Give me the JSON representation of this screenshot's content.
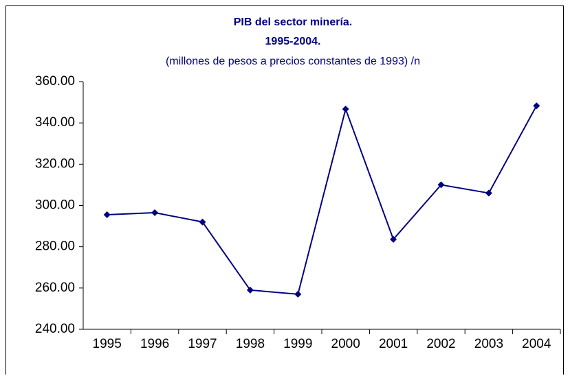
{
  "chart_data": {
    "type": "line",
    "title": "PIB del sector minería.",
    "subtitle": "1995-2004.",
    "note": "(millones de pesos a precios constantes de 1993) /n",
    "categories": [
      "1995",
      "1996",
      "1997",
      "1998",
      "1999",
      "2000",
      "2001",
      "2002",
      "2003",
      "2004"
    ],
    "values": [
      295.5,
      296.5,
      292,
      259,
      257,
      346.7,
      283.6,
      310,
      306,
      348.3
    ],
    "color": "#000080",
    "ylim": [
      240,
      360
    ],
    "yticks": [
      {
        "value": 240,
        "label": "240.00"
      },
      {
        "value": 260,
        "label": "260.00"
      },
      {
        "value": 280,
        "label": "280.00"
      },
      {
        "value": 300,
        "label": "300.00"
      },
      {
        "value": 320,
        "label": "320.00"
      },
      {
        "value": 340,
        "label": "340.00"
      },
      {
        "value": 360,
        "label": "360.00"
      }
    ],
    "grid": false
  }
}
